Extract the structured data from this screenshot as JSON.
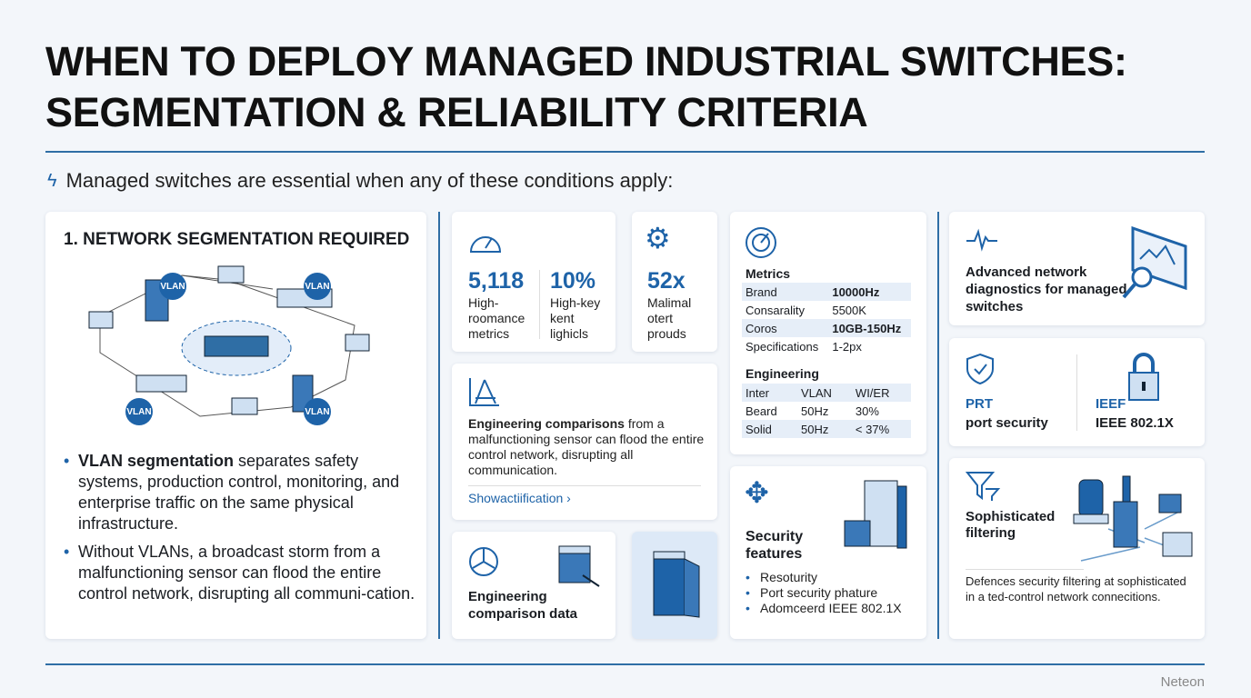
{
  "title": {
    "line1": "WHEN TO DEPLOY MANAGED INDUSTRIAL SWITCHES:",
    "line2": "SEGMENTATION & RELIABILITY CRITERIA"
  },
  "subtitle": "Managed switches are essential when any of these conditions apply:",
  "colors": {
    "accent": "#1e63a8",
    "rule": "#2f6ea5",
    "background": "#f3f6fa"
  },
  "segmentation": {
    "heading": "1. NETWORK SEGMENTATION REQUIRED",
    "vlan_label": "VLAN",
    "bullets": [
      {
        "bold": "VLAN segmentation",
        "text": " separates safety systems, production control, monitoring, and enterprise traffic on the same physical infrastructure."
      },
      {
        "bold": "",
        "text": "Without VLANs, a broadcast storm from a malfunctioning sensor can flood the entire control network, disrupting all communi-cation."
      }
    ]
  },
  "metrics_card": {
    "items": [
      {
        "value": "5,118",
        "label": "High-roomance metrics"
      },
      {
        "value": "10%",
        "label": "High-key kent lighicls"
      }
    ]
  },
  "ratio_card": {
    "value": "52x",
    "label": "Malimal otert prouds"
  },
  "table_card": {
    "metrics_heading": "Metrics",
    "metrics_rows": [
      [
        "Brand",
        "10000Hz"
      ],
      [
        "Consarality",
        "5500K"
      ],
      [
        "Coros",
        "10GB-150Hz"
      ],
      [
        "Specifications",
        "1-2px"
      ]
    ],
    "engineering_heading": "Engineering",
    "engineering_rows": [
      [
        "Inter",
        "VLAN",
        "WI/ER"
      ],
      [
        "Beard",
        "50Hz",
        "30%"
      ],
      [
        "Solid",
        "50Hz",
        "< 37%"
      ]
    ]
  },
  "engineering_card": {
    "bold": "Engineering comparisons",
    "text": " from a malfunctioning sensor can flood the entire control network, disrupting all communication.",
    "link": "Showactiification ›"
  },
  "comparison_card": {
    "title": "Engineering comparison data"
  },
  "security_card": {
    "title": "Security features",
    "items": [
      "Resoturity",
      "Port security phature",
      "Adomceerd IEEE 802.1X"
    ]
  },
  "diagnostics_card": {
    "title": "Advanced network diagnostics for managed switches"
  },
  "port_card": {
    "left_abbr": "PRT",
    "left_label": "port security",
    "right_abbr": "IEEF",
    "right_label": "IEEE 802.1X"
  },
  "filtering_card": {
    "title": "Sophisticated filtering",
    "text": "Defences security filtering at sophisticated in a ted-control network connecitions."
  },
  "footer": {
    "brand": "Neteon"
  }
}
